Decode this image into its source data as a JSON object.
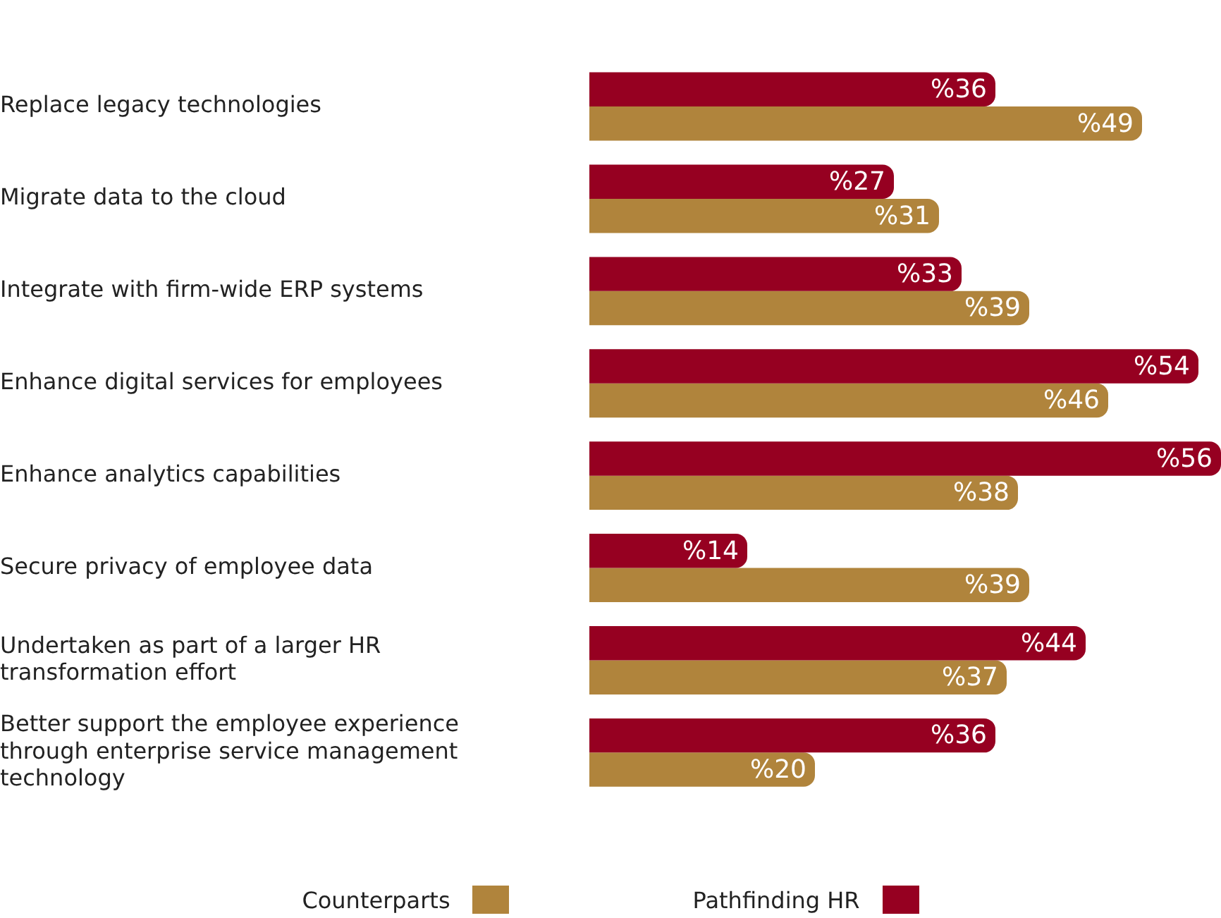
{
  "chart_data": {
    "type": "bar",
    "orientation": "horizontal",
    "legend": "bottom",
    "categories": [
      "Replace legacy technologies",
      "Migrate data to the cloud",
      "Integrate with firm-wide ERP systems",
      "Enhance digital services for employees",
      "Enhance analytics capabilities",
      "Secure privacy of employee data",
      "Undertaken as part of a larger HR transformation effort",
      "Better support the employee experience through enterprise service management technology"
    ],
    "series": [
      {
        "name": "Pathfinding HR",
        "color": "#960021",
        "values": [
          36,
          27,
          33,
          54,
          56,
          14,
          44,
          36
        ],
        "value_labels": [
          "%36",
          "%27",
          "%33",
          "%54",
          "%56",
          "%14",
          "%44",
          "%36"
        ]
      },
      {
        "name": "Counterparts",
        "color": "#b0843c",
        "values": [
          49,
          31,
          39,
          46,
          38,
          39,
          37,
          20
        ],
        "value_labels": [
          "%49",
          "%31",
          "%39",
          "%46",
          "%38",
          "%39",
          "%37",
          "%20"
        ]
      }
    ]
  }
}
